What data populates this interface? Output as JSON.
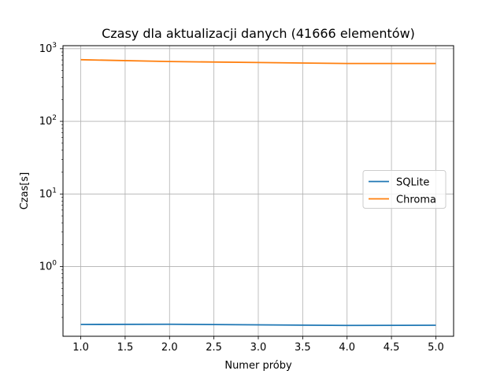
{
  "chart_data": {
    "type": "line",
    "title": "Czasy dla aktualizacji danych (41666 elementów)",
    "xlabel": "Numer próby",
    "ylabel": "Czas[s]",
    "yscale": "log",
    "xlim": [
      0.8,
      5.2
    ],
    "ylim": [
      0.11,
      1100
    ],
    "grid": true,
    "legend_position": "center-right",
    "x": [
      1,
      2,
      3,
      4,
      5
    ],
    "x_ticks": [
      {
        "value": 1.0,
        "label": "1.0"
      },
      {
        "value": 1.5,
        "label": "1.5"
      },
      {
        "value": 2.0,
        "label": "2.0"
      },
      {
        "value": 2.5,
        "label": "2.5"
      },
      {
        "value": 3.0,
        "label": "3.0"
      },
      {
        "value": 3.5,
        "label": "3.5"
      },
      {
        "value": 4.0,
        "label": "4.0"
      },
      {
        "value": 4.5,
        "label": "4.5"
      },
      {
        "value": 5.0,
        "label": "5.0"
      }
    ],
    "y_ticks": [
      {
        "value": 1,
        "base": "10",
        "exp": "0"
      },
      {
        "value": 10,
        "base": "10",
        "exp": "1"
      },
      {
        "value": 100,
        "base": "10",
        "exp": "2"
      },
      {
        "value": 1000,
        "base": "10",
        "exp": "3"
      }
    ],
    "series": [
      {
        "name": "SQLite",
        "color": "#1f77b4",
        "values": [
          0.16,
          0.161,
          0.158,
          0.155,
          0.156
        ]
      },
      {
        "name": "Chroma",
        "color": "#ff7f0e",
        "values": [
          705,
          665,
          645,
          625,
          625
        ]
      }
    ]
  }
}
